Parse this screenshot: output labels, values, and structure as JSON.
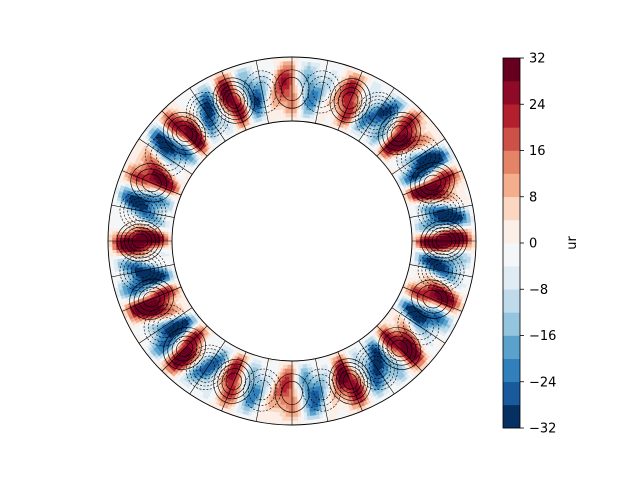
{
  "chart_data": {
    "type": "heatmap",
    "projection": "annular meridional/equatorial slice",
    "field": "ur",
    "colormap": "RdBu_r",
    "grid": false,
    "contour_lines": true,
    "negative_contours_dashed": true,
    "azimuthal_structure": {
      "description": "alternating positive/negative radially elongated cells around the annulus",
      "strongest_positive_regions": [
        "left (~180 deg)",
        "right (~0 deg)",
        "bottom-left (~250 deg)",
        "top-right (~80 deg)"
      ],
      "strongest_negative_regions": [
        "near left and right maxima",
        "top (~90 deg)",
        "bottom (~270 deg)"
      ]
    },
    "value_range": [
      -32,
      32
    ],
    "colorbar": {
      "label": "ur",
      "levels": [
        -32,
        -28,
        -24,
        -20,
        -16,
        -12,
        -8,
        -4,
        0,
        4,
        8,
        12,
        16,
        20,
        24,
        28,
        32
      ],
      "ticks": [
        32,
        24,
        16,
        8,
        0,
        -8,
        -16,
        -24,
        -32
      ],
      "tick_labels": [
        "32",
        "24",
        "16",
        "8",
        "0",
        "−8",
        "−16",
        "−24",
        "−32"
      ],
      "colors": [
        "#053061",
        "#185a9b",
        "#3180bc",
        "#5aa2cc",
        "#93c5de",
        "#bfdbeb",
        "#e0ecf3",
        "#f4f6f8",
        "#fbefe8",
        "#fbd6c1",
        "#f4ae8d",
        "#e48467",
        "#cc5148",
        "#b2202d",
        "#8e0a26",
        "#67001f"
      ],
      "placement": "right"
    }
  }
}
